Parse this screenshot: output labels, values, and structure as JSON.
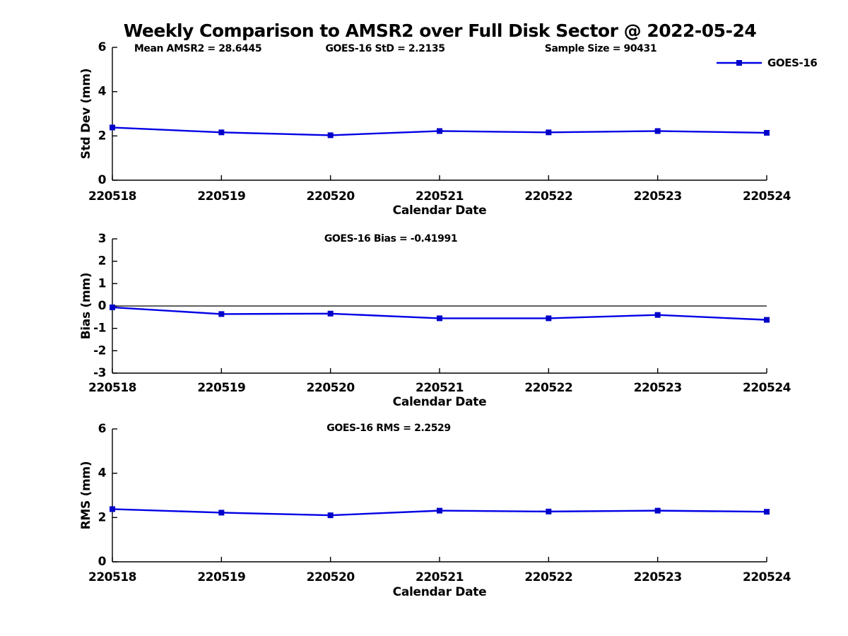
{
  "title": "Weekly Comparison to AMSR2 over Full Disk Sector @ 2022-05-24",
  "colors": {
    "line": "#0000E6",
    "marker": "#0000C8",
    "axis": "#000000",
    "zero_line": "#000000",
    "text": "#000000",
    "background": "#FFFFFF"
  },
  "chart_data": [
    {
      "type": "line",
      "name": "stddev",
      "xlabel": "Calendar Date",
      "ylabel": "Std Dev (mm)",
      "x": [
        "220518",
        "220519",
        "220520",
        "220521",
        "220522",
        "220523",
        "220524"
      ],
      "ylim": [
        0,
        6
      ],
      "yticks": [
        0,
        2,
        4,
        6
      ],
      "series": [
        {
          "name": "GOES-16",
          "values": [
            2.38,
            2.16,
            2.03,
            2.22,
            2.16,
            2.22,
            2.14
          ]
        }
      ],
      "annotations": [
        "Mean AMSR2 = 28.6445",
        "GOES-16 StD = 2.2135",
        "Sample Size = 90431"
      ],
      "legend": {
        "label": "GOES-16",
        "position": "top-right"
      },
      "zero_line": false,
      "grid": false
    },
    {
      "type": "line",
      "name": "bias",
      "xlabel": "Calendar Date",
      "ylabel": "Bias (mm)",
      "x": [
        "220518",
        "220519",
        "220520",
        "220521",
        "220522",
        "220523",
        "220524"
      ],
      "ylim": [
        -3,
        3
      ],
      "yticks": [
        -3,
        -2,
        -1,
        0,
        1,
        2,
        3
      ],
      "series": [
        {
          "name": "GOES-16",
          "values": [
            -0.06,
            -0.36,
            -0.34,
            -0.55,
            -0.55,
            -0.4,
            -0.62
          ]
        }
      ],
      "annotations": [
        "GOES-16 Bias  = -0.41991"
      ],
      "legend": null,
      "zero_line": true,
      "grid": false
    },
    {
      "type": "line",
      "name": "rms",
      "xlabel": "Calendar Date",
      "ylabel": "RMS (mm)",
      "x": [
        "220518",
        "220519",
        "220520",
        "220521",
        "220522",
        "220523",
        "220524"
      ],
      "ylim": [
        0,
        6
      ],
      "yticks": [
        0,
        2,
        4,
        6
      ],
      "series": [
        {
          "name": "GOES-16",
          "values": [
            2.38,
            2.22,
            2.1,
            2.31,
            2.27,
            2.31,
            2.26
          ]
        }
      ],
      "annotations": [
        "GOES-16 RMS = 2.2529"
      ],
      "legend": null,
      "zero_line": false,
      "grid": false
    }
  ]
}
